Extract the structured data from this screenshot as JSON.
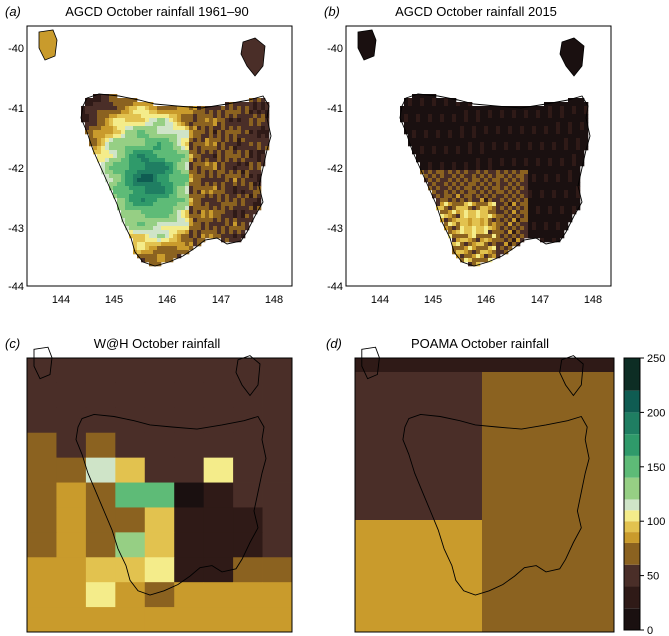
{
  "panels": [
    {
      "id": "a",
      "letter": "(a)",
      "title": "AGCD October rainfall 1961–90"
    },
    {
      "id": "b",
      "letter": "(b)",
      "title": "AGCD October rainfall 2015"
    },
    {
      "id": "c",
      "letter": "(c)",
      "title": "W@H October rainfall"
    },
    {
      "id": "d",
      "letter": "(d)",
      "title": "POAMA October rainfall"
    }
  ],
  "axes": {
    "lon_ticks": [
      "144",
      "145",
      "146",
      "147",
      "148"
    ],
    "lat_ticks": [
      "-40",
      "-41",
      "-42",
      "-43",
      "-44"
    ]
  },
  "colorbar": {
    "ticks": [
      "250",
      "200",
      "150",
      "100",
      "50",
      "0"
    ],
    "bins": [
      0,
      20,
      40,
      60,
      80,
      90,
      100,
      110,
      120,
      140,
      160,
      180,
      200,
      220,
      250
    ],
    "colors": [
      "#1a1010",
      "#2f1a17",
      "#4a2e28",
      "#8b6220",
      "#c99b2c",
      "#e2c24f",
      "#f4ec8a",
      "#cfe4c8",
      "#96cf84",
      "#5ebb77",
      "#2f9a6a",
      "#1f7e62",
      "#0f5c52",
      "#0d2d24"
    ]
  },
  "panel_c_grid": [
    [
      "#4a2e28",
      "#4a2e28",
      "#4a2e28",
      "#4a2e28",
      "#4a2e28",
      "#4a2e28",
      "#4a2e28",
      "#4a2e28",
      "#4a2e28"
    ],
    [
      "#4a2e28",
      "#4a2e28",
      "#4a2e28",
      "#4a2e28",
      "#4a2e28",
      "#4a2e28",
      "#4a2e28",
      "#4a2e28",
      "#4a2e28"
    ],
    [
      "#4a2e28",
      "#4a2e28",
      "#4a2e28",
      "#4a2e28",
      "#4a2e28",
      "#4a2e28",
      "#4a2e28",
      "#4a2e28",
      "#4a2e28"
    ],
    [
      "#8b6220",
      "#4a2e28",
      "#8b6220",
      "#4a2e28",
      "#4a2e28",
      "#4a2e28",
      "#4a2e28",
      "#4a2e28",
      "#4a2e28"
    ],
    [
      "#8b6220",
      "#8b6220",
      "#cfe4c8",
      "#e2c24f",
      "#4a2e28",
      "#4a2e28",
      "#f4ec8a",
      "#4a2e28",
      "#4a2e28"
    ],
    [
      "#8b6220",
      "#c99b2c",
      "#8b6220",
      "#5ebb77",
      "#5ebb77",
      "#1a1010",
      "#2f1a17",
      "#4a2e28",
      "#4a2e28"
    ],
    [
      "#8b6220",
      "#c99b2c",
      "#8b6220",
      "#8b6220",
      "#e2c24f",
      "#2f1a17",
      "#2f1a17",
      "#2f1a17",
      "#4a2e28"
    ],
    [
      "#8b6220",
      "#c99b2c",
      "#8b6220",
      "#96cf84",
      "#e2c24f",
      "#2f1a17",
      "#2f1a17",
      "#2f1a17",
      "#4a2e28"
    ],
    [
      "#c99b2c",
      "#c99b2c",
      "#e2c24f",
      "#e2c24f",
      "#f4ec8a",
      "#2f1a17",
      "#2f1a17",
      "#8b6220",
      "#8b6220"
    ],
    [
      "#c99b2c",
      "#c99b2c",
      "#f4ec8a",
      "#c99b2c",
      "#8b6220",
      "#c99b2c",
      "#c99b2c",
      "#c99b2c",
      "#c99b2c"
    ],
    [
      "#c99b2c",
      "#c99b2c",
      "#c99b2c",
      "#c99b2c",
      "#c99b2c",
      "#c99b2c",
      "#c99b2c",
      "#c99b2c",
      "#c99b2c"
    ]
  ],
  "panel_d_grid": [
    [
      "#2f1a17",
      "#2f1a17"
    ],
    [
      "#4a2e28",
      "#8b6220"
    ],
    [
      "#c99b2c",
      "#8b6220"
    ]
  ]
}
